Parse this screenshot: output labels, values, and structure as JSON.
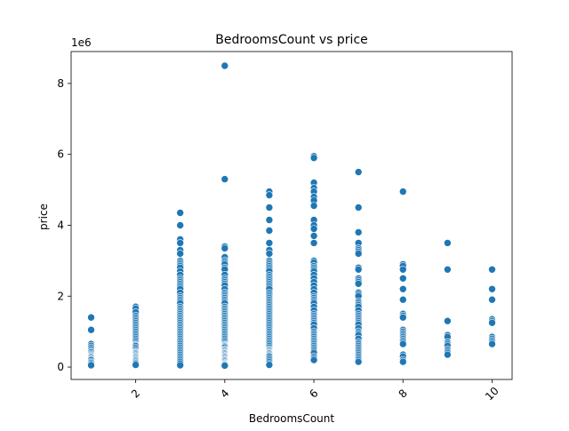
{
  "chart_data": {
    "type": "scatter",
    "title": "BedroomsCount vs price",
    "xlabel": "BedroomsCount",
    "ylabel": "price",
    "y_offset_label": "1e6",
    "xlim": [
      0.55,
      10.45
    ],
    "ylim": [
      -350000,
      8900000
    ],
    "x_ticks": [
      2,
      4,
      6,
      8,
      10
    ],
    "x_tick_labels": [
      "2",
      "4",
      "6",
      "8",
      "10"
    ],
    "y_ticks": [
      0,
      2000000,
      4000000,
      6000000,
      8000000
    ],
    "y_tick_labels": [
      "0",
      "2",
      "4",
      "6",
      "8"
    ],
    "grid": false,
    "legend": "none",
    "marker_color": "#1f77b4",
    "marker_edge_color": "#ffffff",
    "series": [
      {
        "x": [
          1,
          1,
          1,
          1,
          1,
          1,
          1,
          1,
          1,
          1,
          1,
          1,
          1,
          1,
          1,
          1,
          1,
          1,
          1,
          1,
          2,
          2,
          2,
          2,
          2,
          2,
          2,
          2,
          2,
          2,
          2,
          2,
          2,
          2,
          2,
          2,
          2,
          2,
          2,
          2,
          2,
          2,
          2,
          2,
          2,
          2,
          2,
          2,
          2,
          2,
          2,
          2,
          2,
          2,
          2,
          2,
          2,
          2,
          2,
          2,
          3,
          3,
          3,
          3,
          3,
          3,
          3,
          3,
          3,
          3,
          3,
          3,
          3,
          3,
          3,
          3,
          3,
          3,
          3,
          3,
          3,
          3,
          3,
          3,
          3,
          3,
          3,
          3,
          3,
          3,
          3,
          3,
          3,
          3,
          3,
          3,
          3,
          3,
          3,
          3,
          3,
          3,
          3,
          3,
          3,
          3,
          3,
          3,
          3,
          3,
          3,
          3,
          3,
          3,
          3,
          3,
          3,
          3,
          3,
          3,
          4,
          4,
          4,
          4,
          4,
          4,
          4,
          4,
          4,
          4,
          4,
          4,
          4,
          4,
          4,
          4,
          4,
          4,
          4,
          4,
          4,
          4,
          4,
          4,
          4,
          4,
          4,
          4,
          4,
          4,
          4,
          4,
          4,
          4,
          4,
          4,
          4,
          4,
          4,
          4,
          4,
          4,
          4,
          4,
          4,
          4,
          4,
          4,
          4,
          4,
          4,
          4,
          4,
          4,
          4,
          4,
          4,
          4,
          4,
          4,
          4,
          4,
          4,
          4,
          4,
          4,
          4,
          4,
          4,
          4,
          5,
          5,
          5,
          5,
          5,
          5,
          5,
          5,
          5,
          5,
          5,
          5,
          5,
          5,
          5,
          5,
          5,
          5,
          5,
          5,
          5,
          5,
          5,
          5,
          5,
          5,
          5,
          5,
          5,
          5,
          5,
          5,
          5,
          5,
          5,
          5,
          5,
          5,
          5,
          5,
          5,
          5,
          5,
          5,
          5,
          5,
          5,
          5,
          5,
          5,
          5,
          5,
          5,
          5,
          5,
          5,
          5,
          5,
          5,
          5,
          5,
          5,
          5,
          5,
          5,
          5,
          5,
          5,
          5,
          5,
          6,
          6,
          6,
          6,
          6,
          6,
          6,
          6,
          6,
          6,
          6,
          6,
          6,
          6,
          6,
          6,
          6,
          6,
          6,
          6,
          6,
          6,
          6,
          6,
          6,
          6,
          6,
          6,
          6,
          6,
          6,
          6,
          6,
          6,
          6,
          6,
          6,
          6,
          6,
          6,
          6,
          6,
          6,
          6,
          6,
          6,
          6,
          6,
          6,
          6,
          6,
          6,
          6,
          6,
          6,
          6,
          7,
          7,
          7,
          7,
          7,
          7,
          7,
          7,
          7,
          7,
          7,
          7,
          7,
          7,
          7,
          7,
          7,
          7,
          7,
          7,
          7,
          7,
          7,
          7,
          7,
          7,
          7,
          7,
          7,
          7,
          7,
          7,
          7,
          7,
          7,
          7,
          7,
          7,
          7,
          7,
          7,
          7,
          7,
          7,
          7,
          7,
          8,
          8,
          8,
          8,
          8,
          8,
          8,
          8,
          8,
          8,
          8,
          8,
          8,
          8,
          8,
          8,
          8,
          8,
          8,
          8,
          8,
          8,
          8,
          9,
          9,
          9,
          9,
          9,
          9,
          9,
          9,
          9,
          9,
          9,
          9,
          10,
          10,
          10,
          10,
          10,
          10,
          10,
          10,
          10,
          10,
          10
        ],
        "y": [
          1400000,
          1050000,
          650000,
          600000,
          550000,
          500000,
          450000,
          420000,
          380000,
          350000,
          320000,
          300000,
          280000,
          250000,
          220000,
          200000,
          150000,
          120000,
          80000,
          50000,
          1700000,
          1650000,
          1550000,
          1450000,
          1400000,
          1350000,
          1300000,
          1250000,
          1200000,
          1150000,
          1100000,
          1050000,
          1000000,
          950000,
          900000,
          850000,
          800000,
          750000,
          700000,
          650000,
          620000,
          600000,
          550000,
          500000,
          450000,
          420000,
          400000,
          380000,
          350000,
          320000,
          300000,
          280000,
          250000,
          230000,
          200000,
          180000,
          150000,
          120000,
          100000,
          60000,
          4350000,
          4000000,
          3600000,
          3500000,
          3300000,
          3200000,
          3000000,
          2950000,
          2900000,
          2850000,
          2800000,
          2700000,
          2600000,
          2500000,
          2450000,
          2400000,
          2350000,
          2300000,
          2250000,
          2200000,
          2100000,
          2000000,
          1950000,
          1900000,
          1850000,
          1800000,
          1700000,
          1650000,
          1600000,
          1550000,
          1500000,
          1450000,
          1400000,
          1350000,
          1300000,
          1250000,
          1200000,
          1150000,
          1100000,
          1050000,
          1000000,
          950000,
          900000,
          850000,
          800000,
          750000,
          700000,
          650000,
          600000,
          550000,
          500000,
          450000,
          400000,
          350000,
          300000,
          250000,
          200000,
          150000,
          100000,
          50000,
          8500000,
          5300000,
          3400000,
          3350000,
          3100000,
          3000000,
          2950000,
          2900000,
          2800000,
          2750000,
          2600000,
          2500000,
          2450000,
          2400000,
          2350000,
          2300000,
          2200000,
          2100000,
          2050000,
          2000000,
          1950000,
          1900000,
          1850000,
          1800000,
          1700000,
          1650000,
          1600000,
          1550000,
          1500000,
          1450000,
          1400000,
          1350000,
          1300000,
          1250000,
          1200000,
          1150000,
          1100000,
          1050000,
          1000000,
          950000,
          900000,
          850000,
          800000,
          750000,
          700000,
          650000,
          620000,
          600000,
          580000,
          550000,
          500000,
          480000,
          450000,
          420000,
          400000,
          380000,
          350000,
          320000,
          300000,
          280000,
          250000,
          220000,
          200000,
          180000,
          150000,
          120000,
          100000,
          80000,
          60000,
          40000,
          4950000,
          4850000,
          4500000,
          4150000,
          3850000,
          3500000,
          3300000,
          3200000,
          3000000,
          2950000,
          2900000,
          2850000,
          2800000,
          2750000,
          2700000,
          2600000,
          2550000,
          2500000,
          2450000,
          2400000,
          2350000,
          2300000,
          2250000,
          2200000,
          2100000,
          2050000,
          2000000,
          1950000,
          1900000,
          1850000,
          1800000,
          1750000,
          1700000,
          1650000,
          1600000,
          1550000,
          1500000,
          1450000,
          1400000,
          1350000,
          1300000,
          1250000,
          1200000,
          1150000,
          1100000,
          1050000,
          1000000,
          950000,
          900000,
          850000,
          800000,
          750000,
          700000,
          650000,
          600000,
          550000,
          500000,
          480000,
          450000,
          420000,
          400000,
          380000,
          350000,
          320000,
          300000,
          250000,
          200000,
          150000,
          100000,
          60000,
          5950000,
          5900000,
          5200000,
          5050000,
          4950000,
          4800000,
          4700000,
          4550000,
          4150000,
          4000000,
          3900000,
          3700000,
          3500000,
          3000000,
          2950000,
          2850000,
          2800000,
          2750000,
          2700000,
          2600000,
          2500000,
          2400000,
          2300000,
          2200000,
          2100000,
          2000000,
          1950000,
          1900000,
          1850000,
          1800000,
          1700000,
          1600000,
          1500000,
          1450000,
          1400000,
          1350000,
          1300000,
          1250000,
          1200000,
          1100000,
          1000000,
          950000,
          900000,
          850000,
          800000,
          750000,
          700000,
          650000,
          600000,
          550000,
          500000,
          450000,
          400000,
          300000,
          250000,
          200000,
          5500000,
          4500000,
          3800000,
          3500000,
          3350000,
          3300000,
          3250000,
          3200000,
          2800000,
          2750000,
          2500000,
          2450000,
          2400000,
          2350000,
          2100000,
          2050000,
          2000000,
          1850000,
          1800000,
          1750000,
          1700000,
          1600000,
          1500000,
          1450000,
          1400000,
          1350000,
          1300000,
          1250000,
          1200000,
          1100000,
          1000000,
          950000,
          900000,
          800000,
          700000,
          650000,
          600000,
          550000,
          500000,
          450000,
          400000,
          350000,
          300000,
          250000,
          200000,
          150000,
          4950000,
          2900000,
          2850000,
          2750000,
          2500000,
          2200000,
          1900000,
          1500000,
          1450000,
          1400000,
          1050000,
          1000000,
          950000,
          900000,
          850000,
          800000,
          750000,
          700000,
          650000,
          350000,
          300000,
          200000,
          150000,
          3500000,
          2750000,
          1300000,
          900000,
          850000,
          700000,
          650000,
          600000,
          500000,
          450000,
          400000,
          350000,
          2750000,
          2200000,
          1900000,
          1350000,
          1300000,
          1250000,
          850000,
          800000,
          750000,
          700000,
          650000
        ]
      }
    ]
  }
}
